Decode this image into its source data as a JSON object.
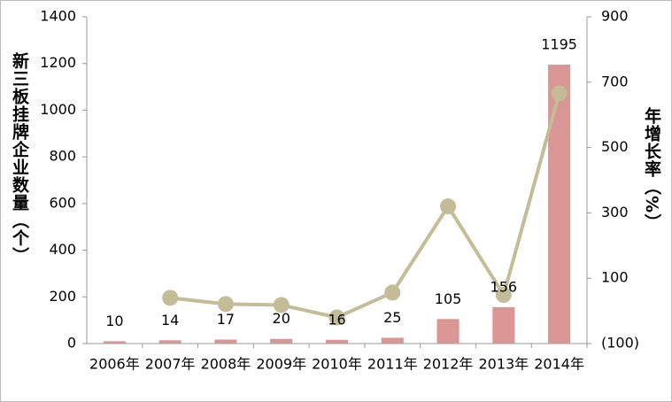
{
  "chart_data": {
    "type": "bar",
    "y_label": "新三板挂牌企业数量（个）",
    "y2_label": "年增长率（%）",
    "categories": [
      "2006年",
      "2007年",
      "2008年",
      "2009年",
      "2010年",
      "2011年",
      "2012年",
      "2013年",
      "2014年"
    ],
    "series": [
      {
        "type": "bar",
        "color": "#d99694",
        "values": [
          10,
          14,
          17,
          20,
          16,
          25,
          105,
          156,
          1195
        ]
      },
      {
        "type": "line",
        "axis": "y2",
        "color": "#c4bc96",
        "values": [
          null,
          40,
          21,
          18,
          -20,
          56,
          320,
          49,
          666
        ]
      }
    ],
    "ylim": [
      0,
      1400
    ],
    "yticks": [
      0,
      200,
      400,
      600,
      800,
      1000,
      1200,
      1400
    ],
    "y2lim": [
      -100,
      900
    ],
    "y2ticks": [
      {
        "value": -100,
        "label": "(100)"
      },
      100,
      300,
      500,
      700,
      900
    ],
    "grid": false
  }
}
